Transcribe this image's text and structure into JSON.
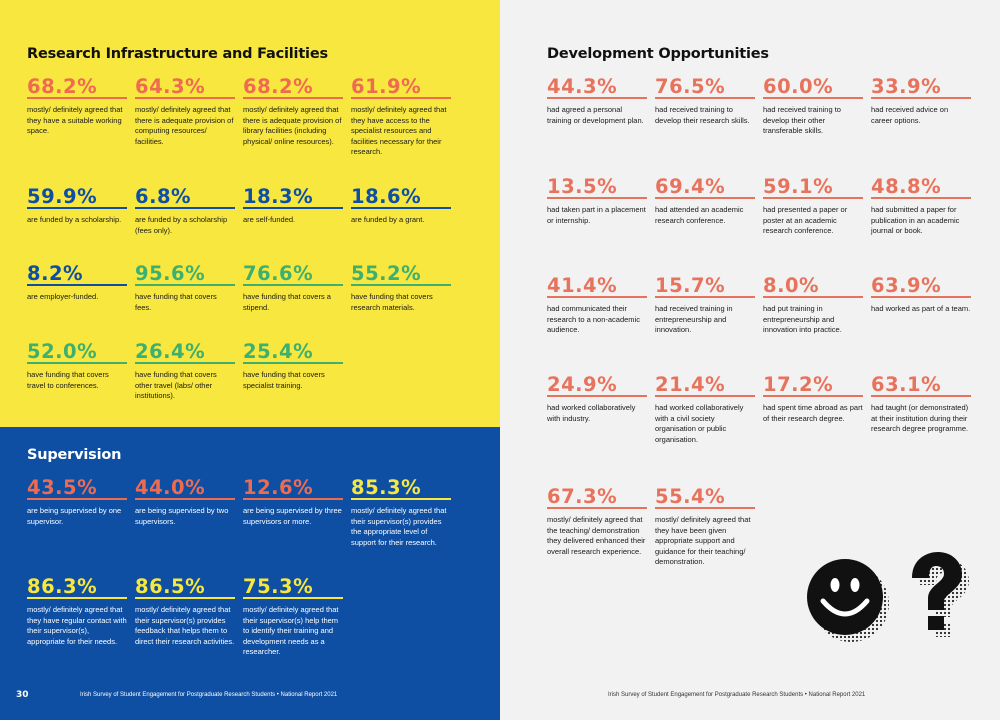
{
  "research": {
    "title": "Research Infrastructure and Facilities",
    "stats": [
      {
        "value": "68.2%",
        "text": "mostly/ definitely agreed that they have a suitable working space."
      },
      {
        "value": "64.3%",
        "text": "mostly/ definitely agreed that there is adequate provision of computing resources/ facilities."
      },
      {
        "value": "68.2%",
        "text": "mostly/ definitely agreed that there is adequate provision of library facilities (including physical/ online resources)."
      },
      {
        "value": "61.9%",
        "text": "mostly/ definitely agreed that they have access to the specialist resources and facilities necessary for their research."
      },
      {
        "value": "59.9%",
        "text": "are funded by a scholarship."
      },
      {
        "value": "6.8%",
        "text": "are funded by a scholarship (fees only)."
      },
      {
        "value": "18.3%",
        "text": "are self-funded."
      },
      {
        "value": "18.6%",
        "text": "are funded by a grant."
      },
      {
        "value": "8.2%",
        "text": "are employer-funded."
      },
      {
        "value": "95.6%",
        "text": "have funding that covers fees."
      },
      {
        "value": "76.6%",
        "text": "have funding that covers a stipend."
      },
      {
        "value": "55.2%",
        "text": "have funding that covers research materials."
      },
      {
        "value": "52.0%",
        "text": "have funding that covers travel to conferences."
      },
      {
        "value": "26.4%",
        "text": "have funding that covers other travel (labs/ other institutions)."
      },
      {
        "value": "25.4%",
        "text": "have funding that covers specialist training."
      }
    ]
  },
  "supervision": {
    "title": "Supervision",
    "stats": [
      {
        "value": "43.5%",
        "text": "are being supervised by one supervisor."
      },
      {
        "value": "44.0%",
        "text": "are being supervised by two supervisors."
      },
      {
        "value": "12.6%",
        "text": "are being supervised by three supervisors or more."
      },
      {
        "value": "85.3%",
        "text": "mostly/ definitely agreed that their supervisor(s) provides the appropriate level of support for their research."
      },
      {
        "value": "86.3%",
        "text": "mostly/ definitely agreed that they have regular contact with their supervisor(s), appropriate for their needs."
      },
      {
        "value": "86.5%",
        "text": "mostly/ definitely agreed that their supervisor(s) provides feedback that helps them to direct their research activities."
      },
      {
        "value": "75.3%",
        "text": "mostly/ definitely agreed that their supervisor(s) help them to identify their training and development needs as a researcher."
      }
    ]
  },
  "development": {
    "title": "Development Opportunities",
    "stats": [
      {
        "value": "44.3%",
        "text": "had agreed a personal training or development plan."
      },
      {
        "value": "76.5%",
        "text": "had received training to develop their research skills."
      },
      {
        "value": "60.0%",
        "text": "had received training to develop their other transferable skills."
      },
      {
        "value": "33.9%",
        "text": "had received advice on career options."
      },
      {
        "value": "13.5%",
        "text": "had taken part in a placement or internship."
      },
      {
        "value": "69.4%",
        "text": "had attended an academic research conference."
      },
      {
        "value": "59.1%",
        "text": "had presented a paper or poster at an academic research conference."
      },
      {
        "value": "48.8%",
        "text": "had submitted a paper for publication in an academic journal or book."
      },
      {
        "value": "41.4%",
        "text": "had communicated their research to a non-academic audience."
      },
      {
        "value": "15.7%",
        "text": "had received training in entrepreneurship and innovation."
      },
      {
        "value": "8.0%",
        "text": "had put training in entrepreneurship and innovation into practice."
      },
      {
        "value": "63.9%",
        "text": "had worked as part of a team."
      },
      {
        "value": "24.9%",
        "text": "had worked collaboratively with industry."
      },
      {
        "value": "21.4%",
        "text": "had worked collaboratively with a civil society organisation or public organisation."
      },
      {
        "value": "17.2%",
        "text": "had spent time abroad as part of their research degree."
      },
      {
        "value": "63.1%",
        "text": "had taught (or demonstrated) at their institution during their research degree programme."
      },
      {
        "value": "67.3%",
        "text": "mostly/ definitely agreed that the teaching/ demonstration they delivered enhanced their overall research experience."
      },
      {
        "value": "55.4%",
        "text": "mostly/ definitely agreed that they have been given appropriate support and guidance for their teaching/ demonstration."
      }
    ]
  },
  "footer": {
    "page_number": "30",
    "left": "Irish Survey of Student Engagement for Postgraduate Research Students • National Report 2021",
    "right": "Irish Survey of Student Engagement for Postgraduate Research Students • National Report 2021"
  },
  "colors": {
    "yellow_bg": "#f7e73f",
    "blue_bg": "#0e4fa3",
    "orange": "#ef6b4f",
    "green": "#3db070",
    "navy": "#0e4fa3"
  },
  "icons": [
    "smiley-face-icon",
    "question-mark-icon"
  ]
}
